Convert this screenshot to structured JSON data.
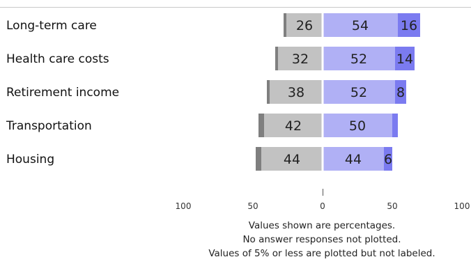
{
  "chart_data": {
    "type": "bar",
    "orientation": "horizontal",
    "stacked": "diverging",
    "categories": [
      "Long-term care",
      "Health care costs",
      "Retirement income",
      "Transportation",
      "Housing"
    ],
    "series": [
      {
        "side": "negative",
        "color": "#7f7f7f",
        "values": [
          2,
          2,
          2,
          4,
          4
        ],
        "labels": [
          "",
          "",
          "",
          "",
          ""
        ]
      },
      {
        "side": "negative",
        "color": "#c2c2c2",
        "values": [
          26,
          32,
          38,
          42,
          44
        ],
        "labels": [
          "26",
          "32",
          "38",
          "42",
          "44"
        ]
      },
      {
        "side": "positive",
        "color": "#b0b0f5",
        "values": [
          54,
          52,
          52,
          50,
          44
        ],
        "labels": [
          "54",
          "52",
          "52",
          "50",
          "44"
        ]
      },
      {
        "side": "positive",
        "color": "#7b7bf0",
        "values": [
          16,
          14,
          8,
          4,
          6
        ],
        "labels": [
          "16",
          "14",
          "8",
          "",
          "6"
        ]
      }
    ],
    "xlim": [
      -100,
      100
    ],
    "x_ticks": [
      {
        "value": -100,
        "label": "100"
      },
      {
        "value": -50,
        "label": "50"
      },
      {
        "value": 0,
        "label": "0"
      },
      {
        "value": 50,
        "label": "50"
      },
      {
        "value": 100,
        "label": "100"
      }
    ],
    "notes": [
      "Values shown are percentages.",
      "No answer responses not plotted.",
      "Values of 5% or less are plotted but not labeled."
    ]
  }
}
